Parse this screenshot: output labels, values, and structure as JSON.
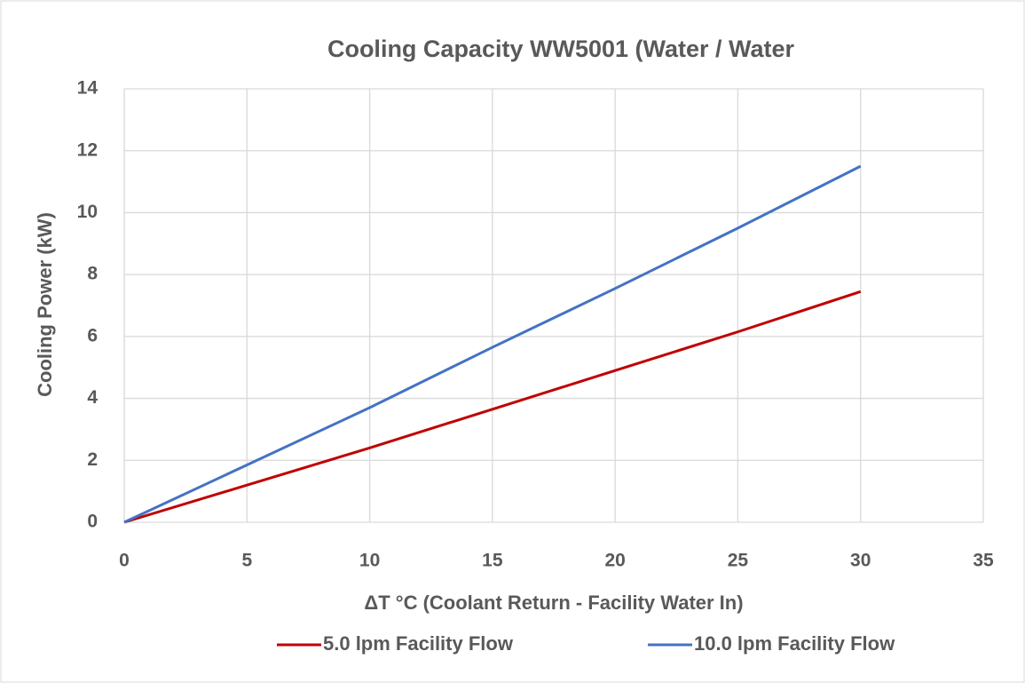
{
  "chart_data": {
    "type": "line",
    "title": "Cooling Capacity WW5001 (Water / Water",
    "x_label": "ΔT °C (Coolant Return - Facility Water In)",
    "y_label": "Cooling Power (kW)",
    "x": [
      0,
      5,
      10,
      15,
      20,
      25,
      30
    ],
    "series": [
      {
        "name": "5.0 lpm Facility Flow",
        "color": "#c00000",
        "values": [
          0,
          1.2,
          2.4,
          3.65,
          4.9,
          6.15,
          7.45
        ]
      },
      {
        "name": "10.0 lpm Facility Flow",
        "color": "#4472c4",
        "values": [
          0,
          1.85,
          3.7,
          5.65,
          7.55,
          9.5,
          11.5
        ]
      }
    ],
    "xlim": [
      0,
      35
    ],
    "xticks": [
      0,
      5,
      10,
      15,
      20,
      25,
      30,
      35
    ],
    "ylim": [
      0,
      14
    ],
    "yticks": [
      0,
      2,
      4,
      6,
      8,
      10,
      12,
      14
    ],
    "grid": true,
    "legend": "bottom"
  }
}
